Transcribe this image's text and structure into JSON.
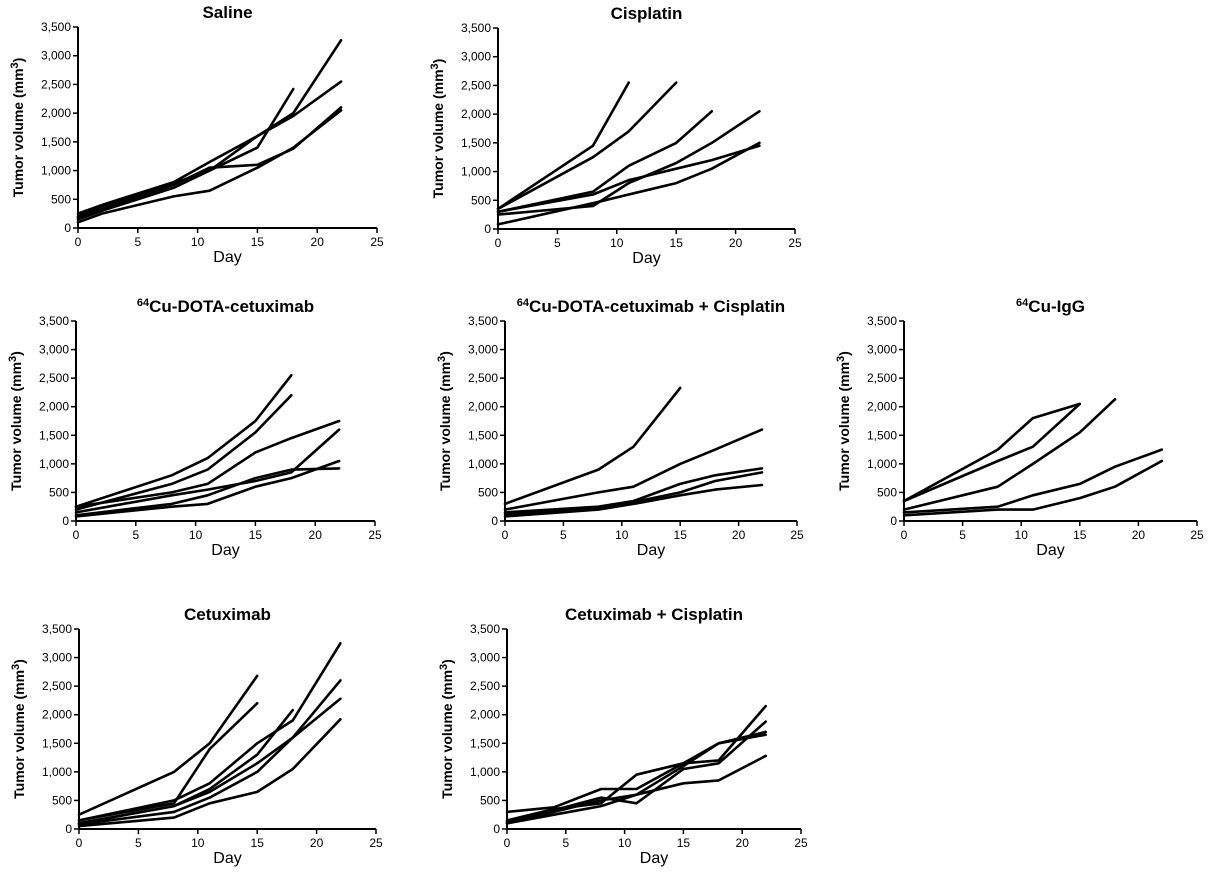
{
  "figure": {
    "chart_data": [
      {
        "type": "line",
        "title": "Saline",
        "xlabel": "Day",
        "ylabel_parts": [
          "Tumor volume (mm",
          "3",
          ")"
        ],
        "xlim": [
          0,
          25
        ],
        "ylim": [
          0,
          3500
        ],
        "xticks": [
          "0",
          "5",
          "10",
          "15",
          "20",
          "25"
        ],
        "yticks": [
          "0",
          "500",
          "1,000",
          "1,500",
          "2,000",
          "2,500",
          "3,000",
          "3,500"
        ],
        "grid": false,
        "series": [
          {
            "x": [
              0,
              2,
              8,
              11,
              15,
              18,
              22
            ],
            "y": [
              250,
              400,
              800,
              1150,
              1600,
              1950,
              2550
            ]
          },
          {
            "x": [
              0,
              2,
              8,
              11,
              15,
              18
            ],
            "y": [
              200,
              380,
              780,
              1000,
              1400,
              2420
            ]
          },
          {
            "x": [
              0,
              2,
              8,
              11,
              15,
              18,
              22
            ],
            "y": [
              150,
              300,
              700,
              1000,
              1600,
              2000,
              3270
            ]
          },
          {
            "x": [
              0,
              2,
              8,
              11,
              15,
              18,
              22
            ],
            "y": [
              180,
              330,
              750,
              1050,
              1100,
              1380,
              2100
            ]
          },
          {
            "x": [
              0,
              2,
              8,
              11,
              15,
              18,
              22
            ],
            "y": [
              100,
              250,
              550,
              650,
              1050,
              1400,
              2050
            ]
          }
        ]
      },
      {
        "type": "line",
        "title": "Cisplatin",
        "xlabel": "Day",
        "ylabel_parts": [
          "Tumor volume (mm",
          "3",
          ")"
        ],
        "xlim": [
          0,
          25
        ],
        "ylim": [
          0,
          3500
        ],
        "xticks": [
          "0",
          "5",
          "10",
          "15",
          "20",
          "25"
        ],
        "yticks": [
          "0",
          "500",
          "1,000",
          "1,500",
          "2,000",
          "2,500",
          "3,000",
          "3,500"
        ],
        "grid": false,
        "series": [
          {
            "x": [
              0,
              8,
              11
            ],
            "y": [
              350,
              1450,
              2550
            ]
          },
          {
            "x": [
              0,
              8,
              11,
              15
            ],
            "y": [
              350,
              1250,
              1700,
              2550
            ]
          },
          {
            "x": [
              0,
              8,
              11,
              15,
              18
            ],
            "y": [
              300,
              650,
              1100,
              1500,
              2050
            ]
          },
          {
            "x": [
              0,
              8,
              11,
              15,
              18,
              22
            ],
            "y": [
              250,
              400,
              800,
              1150,
              1500,
              2050
            ]
          },
          {
            "x": [
              0,
              8,
              11,
              15,
              18,
              22
            ],
            "y": [
              300,
              600,
              850,
              1050,
              1200,
              1450
            ]
          },
          {
            "x": [
              0,
              8,
              11,
              15,
              18,
              22
            ],
            "y": [
              80,
              450,
              600,
              800,
              1050,
              1500
            ]
          }
        ]
      },
      {
        "type": "line",
        "title_parts": [
          "64",
          "Cu-DOTA-cetuximab"
        ],
        "xlabel": "Day",
        "ylabel_parts": [
          "Tumor volume (mm",
          "3",
          ")"
        ],
        "xlim": [
          0,
          25
        ],
        "ylim": [
          0,
          3500
        ],
        "xticks": [
          "0",
          "5",
          "10",
          "15",
          "20",
          "25"
        ],
        "yticks": [
          "0",
          "500",
          "1,000",
          "1,500",
          "2,000",
          "2,500",
          "3,000",
          "3,500"
        ],
        "grid": false,
        "series": [
          {
            "x": [
              0,
              8,
              11,
              15,
              18
            ],
            "y": [
              250,
              800,
              1100,
              1750,
              2550
            ]
          },
          {
            "x": [
              0,
              8,
              11,
              15,
              18
            ],
            "y": [
              200,
              650,
              900,
              1550,
              2200
            ]
          },
          {
            "x": [
              0,
              8,
              11,
              15,
              18,
              22
            ],
            "y": [
              250,
              500,
              650,
              1200,
              1450,
              1750
            ]
          },
          {
            "x": [
              0,
              8,
              11,
              15,
              18,
              22
            ],
            "y": [
              150,
              450,
              550,
              700,
              850,
              1600
            ]
          },
          {
            "x": [
              0,
              8,
              11,
              15,
              18,
              22
            ],
            "y": [
              100,
              300,
              450,
              750,
              900,
              920
            ]
          },
          {
            "x": [
              0,
              8,
              11,
              15,
              18,
              22
            ],
            "y": [
              80,
              250,
              300,
              600,
              750,
              1050
            ]
          }
        ]
      },
      {
        "type": "line",
        "title_parts": [
          "64",
          "Cu-DOTA-cetuximab + Cisplatin"
        ],
        "xlabel": "Day",
        "ylabel_parts": [
          "Tumor volume (mm",
          "3",
          ")"
        ],
        "xlim": [
          0,
          25
        ],
        "ylim": [
          0,
          3500
        ],
        "xticks": [
          "0",
          "5",
          "10",
          "15",
          "20",
          "25"
        ],
        "yticks": [
          "0",
          "500",
          "1,000",
          "1,500",
          "2,000",
          "2,500",
          "3,000",
          "3,500"
        ],
        "grid": false,
        "series": [
          {
            "x": [
              0,
              8,
              11,
              15
            ],
            "y": [
              300,
              900,
              1300,
              2330
            ]
          },
          {
            "x": [
              0,
              8,
              11,
              15,
              18,
              22
            ],
            "y": [
              200,
              500,
              600,
              1000,
              1250,
              1600
            ]
          },
          {
            "x": [
              0,
              8,
              11,
              15,
              18,
              22
            ],
            "y": [
              150,
              250,
              350,
              650,
              800,
              920
            ]
          },
          {
            "x": [
              0,
              8,
              11,
              15,
              18,
              22
            ],
            "y": [
              120,
              220,
              330,
              500,
              700,
              850
            ]
          },
          {
            "x": [
              0,
              8,
              11,
              15,
              18,
              22
            ],
            "y": [
              80,
              200,
              300,
              450,
              550,
              630
            ]
          }
        ]
      },
      {
        "type": "line",
        "title_parts": [
          "64",
          "Cu-IgG"
        ],
        "xlabel": "Day",
        "ylabel_parts": [
          "Tumor volume (mm",
          "3",
          ")"
        ],
        "xlim": [
          0,
          25
        ],
        "ylim": [
          0,
          3500
        ],
        "xticks": [
          "0",
          "5",
          "10",
          "15",
          "20",
          "25"
        ],
        "yticks": [
          "0",
          "500",
          "1,000",
          "1,500",
          "2,000",
          "2,500",
          "3,000",
          "3,500"
        ],
        "grid": false,
        "series": [
          {
            "x": [
              0,
              8,
              11,
              15
            ],
            "y": [
              350,
              1250,
              1800,
              2050
            ]
          },
          {
            "x": [
              0,
              8,
              11,
              15
            ],
            "y": [
              350,
              1050,
              1300,
              2050
            ]
          },
          {
            "x": [
              0,
              8,
              11,
              15,
              18
            ],
            "y": [
              200,
              600,
              1000,
              1550,
              2130
            ]
          },
          {
            "x": [
              0,
              8,
              11,
              15,
              18,
              22
            ],
            "y": [
              150,
              250,
              450,
              650,
              950,
              1250
            ]
          },
          {
            "x": [
              0,
              8,
              11,
              15,
              18,
              22
            ],
            "y": [
              100,
              200,
              200,
              400,
              600,
              1050
            ]
          }
        ]
      },
      {
        "type": "line",
        "title": "Cetuximab",
        "xlabel": "Day",
        "ylabel_parts": [
          "Tumor volume (mm",
          "3",
          ")"
        ],
        "xlim": [
          0,
          25
        ],
        "ylim": [
          0,
          3500
        ],
        "xticks": [
          "0",
          "5",
          "10",
          "15",
          "20",
          "25"
        ],
        "yticks": [
          "0",
          "500",
          "1,000",
          "1,500",
          "2,000",
          "2,500",
          "3,000",
          "3,500"
        ],
        "grid": false,
        "series": [
          {
            "x": [
              0,
              8,
              11,
              15
            ],
            "y": [
              250,
              1000,
              1500,
              2680
            ]
          },
          {
            "x": [
              0,
              8,
              11,
              15
            ],
            "y": [
              150,
              450,
              1400,
              2200
            ]
          },
          {
            "x": [
              0,
              8,
              11,
              15,
              18,
              22
            ],
            "y": [
              150,
              500,
              800,
              1500,
              1900,
              3250
            ]
          },
          {
            "x": [
              0,
              8,
              11,
              15,
              18
            ],
            "y": [
              100,
              400,
              700,
              1300,
              2080
            ]
          },
          {
            "x": [
              0,
              8,
              11,
              15,
              18,
              22
            ],
            "y": [
              100,
              400,
              650,
              1150,
              1600,
              2600
            ]
          },
          {
            "x": [
              0,
              8,
              11,
              15,
              18,
              22
            ],
            "y": [
              80,
              300,
              550,
              1000,
              1600,
              2280
            ]
          },
          {
            "x": [
              0,
              8,
              11,
              15,
              18,
              22
            ],
            "y": [
              50,
              200,
              450,
              650,
              1050,
              1920
            ]
          }
        ]
      },
      {
        "type": "line",
        "title": "Cetuximab + Cisplatin",
        "xlabel": "Day",
        "ylabel_parts": [
          "Tumor volume (mm",
          "3",
          ")"
        ],
        "xlim": [
          0,
          25
        ],
        "ylim": [
          0,
          3500
        ],
        "xticks": [
          "0",
          "5",
          "10",
          "15",
          "20",
          "25"
        ],
        "yticks": [
          "0",
          "500",
          "1,000",
          "1,500",
          "2,000",
          "2,500",
          "3,000",
          "3,500"
        ],
        "grid": false,
        "series": [
          {
            "x": [
              0,
              4,
              8,
              11,
              15,
              18,
              22
            ],
            "y": [
              300,
              380,
              700,
              700,
              1150,
              1200,
              2150
            ]
          },
          {
            "x": [
              0,
              4,
              8,
              11,
              15,
              18,
              22
            ],
            "y": [
              150,
              350,
              450,
              950,
              1150,
              1500,
              1700
            ]
          },
          {
            "x": [
              0,
              4,
              8,
              11,
              15,
              18,
              22
            ],
            "y": [
              100,
              300,
              500,
              600,
              1100,
              1500,
              1650
            ]
          },
          {
            "x": [
              0,
              4,
              8,
              11,
              15,
              18,
              22
            ],
            "y": [
              120,
              330,
              550,
              450,
              1050,
              1150,
              1880
            ]
          },
          {
            "x": [
              0,
              4,
              8,
              11,
              15,
              18,
              22
            ],
            "y": [
              100,
              250,
              400,
              600,
              800,
              850,
              1280
            ]
          }
        ]
      }
    ]
  }
}
